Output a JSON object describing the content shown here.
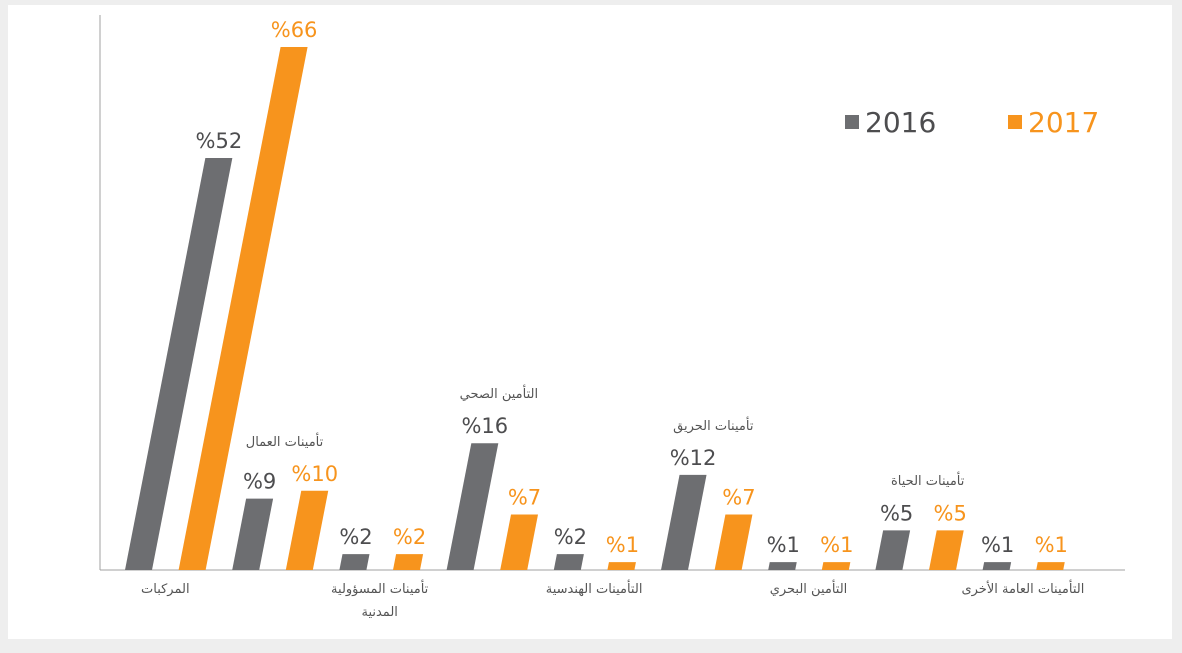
{
  "chart_data": {
    "type": "bar",
    "categories": [
      "المركبات",
      "تأمينات العمال",
      "تأمينات المسؤولية المدنية",
      "التأمين الصحي",
      "التأمينات الهندسية",
      "تأمينات الحريق",
      "التأمين البحري",
      "تأمينات الحياة",
      "التأمينات العامة الأخرى"
    ],
    "series": [
      {
        "name": "2016",
        "color": "#6d6e71",
        "values": [
          52,
          9,
          2,
          16,
          2,
          12,
          1,
          5,
          1
        ],
        "value_labels": [
          "%52",
          "%9",
          "%2",
          "%16",
          "%2",
          "%12",
          "%1",
          "%5",
          "%1"
        ]
      },
      {
        "name": "2017",
        "color": "#f7941d",
        "values": [
          66,
          10,
          2,
          7,
          1,
          7,
          1,
          5,
          1
        ],
        "value_labels": [
          "%66",
          "%10",
          "%2",
          "%7",
          "%1",
          "%7",
          "%1",
          "%5",
          "%1"
        ]
      }
    ],
    "ylim": [
      0,
      66
    ],
    "legend": "top-right"
  }
}
